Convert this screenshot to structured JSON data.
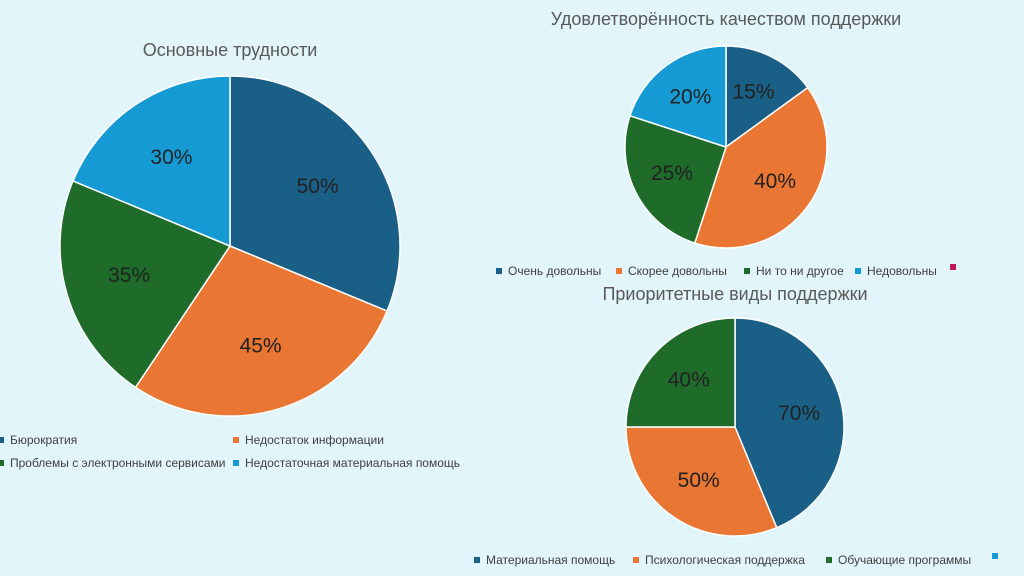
{
  "colors": {
    "blue_dark": "#1a5f85",
    "orange": "#e97632",
    "green": "#1e6b2a",
    "blue_light": "#159ad4",
    "magenta": "#c2185b"
  },
  "chart_data": [
    {
      "type": "pie",
      "title": "Основные трудности",
      "slices": [
        {
          "label": "Бюрократия",
          "value": 50,
          "display": "50%",
          "color": "#1a5f85"
        },
        {
          "label": "Недостаток информации",
          "value": 45,
          "display": "45%",
          "color": "#e97632"
        },
        {
          "label": "Проблемы с электронными сервисами",
          "value": 35,
          "display": "35%",
          "color": "#1e6b2a"
        },
        {
          "label": "Недостаточная материальная помощь",
          "value": 30,
          "display": "30%",
          "color": "#159ad4"
        }
      ],
      "legend": [
        "Бюрократия",
        "Недостаток информации",
        "Проблемы с электронными сервисами",
        "Недостаточная материальная помощь"
      ]
    },
    {
      "type": "pie",
      "title": "Удовлетворённость качеством поддержки",
      "slices": [
        {
          "label": "Очень довольны",
          "value": 15,
          "display": "15%",
          "color": "#1a5f85"
        },
        {
          "label": "Скорее довольны",
          "value": 40,
          "display": "40%",
          "color": "#e97632"
        },
        {
          "label": "Ни то ни другое",
          "value": 25,
          "display": "25%",
          "color": "#1e6b2a"
        },
        {
          "label": "Недовольны",
          "value": 20,
          "display": "20%",
          "color": "#159ad4"
        }
      ],
      "legend": [
        "Очень довольны",
        "Скорее довольны",
        "Ни то ни другое",
        "Недовольны",
        ""
      ]
    },
    {
      "type": "pie",
      "title": "Приоритетные виды поддержки",
      "slices": [
        {
          "label": "Материальная помощь",
          "value": 70,
          "display": "70%",
          "color": "#1a5f85"
        },
        {
          "label": "Психологическая поддержка",
          "value": 50,
          "display": "50%",
          "color": "#e97632"
        },
        {
          "label": "Обучающие программы",
          "value": 40,
          "display": "40%",
          "color": "#1e6b2a"
        }
      ],
      "legend": [
        "Материальная помощь",
        "Психологическая поддержка",
        "Обучающие программы",
        ""
      ]
    }
  ]
}
